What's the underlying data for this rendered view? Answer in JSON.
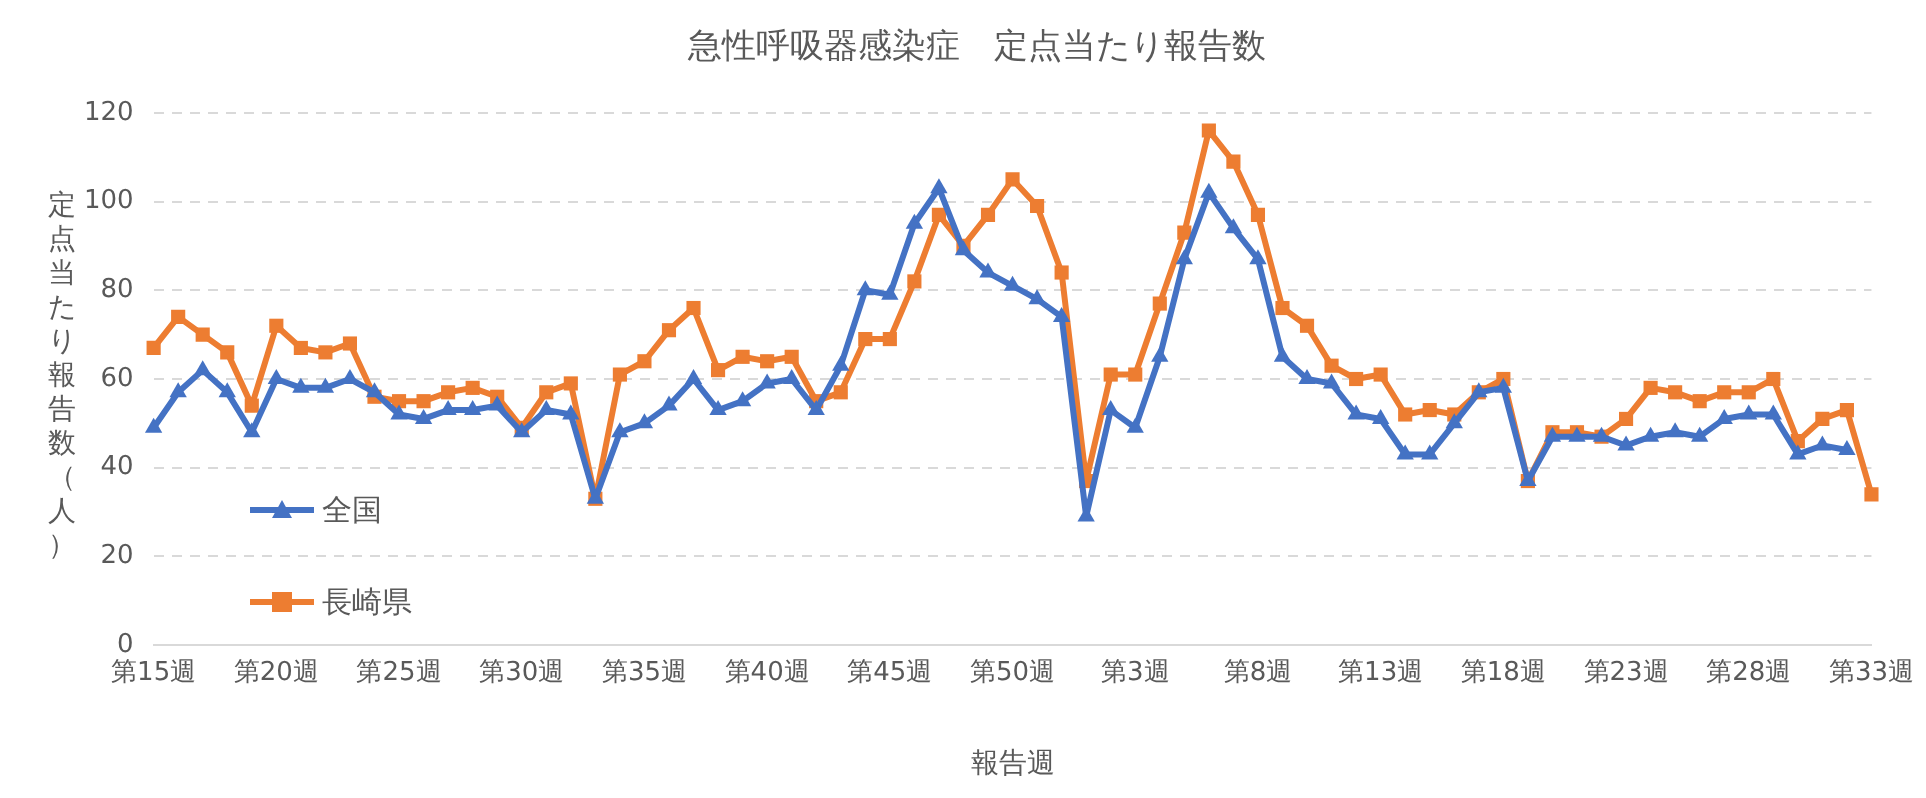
{
  "chart_data": {
    "type": "line",
    "title": "急性呼吸器感染症　定点当たり報告数",
    "xlabel": "報告週",
    "ylabel": "定点当たり報告数（人）",
    "categories": [
      "第15週",
      null,
      null,
      null,
      null,
      "第20週",
      null,
      null,
      null,
      null,
      "第25週",
      null,
      null,
      null,
      null,
      "第30週",
      null,
      null,
      null,
      null,
      "第35週",
      null,
      null,
      null,
      null,
      "第40週",
      null,
      null,
      null,
      null,
      "第45週",
      null,
      null,
      null,
      null,
      "第50週",
      null,
      null,
      null,
      null,
      "第3週",
      null,
      null,
      null,
      null,
      "第8週",
      null,
      null,
      null,
      null,
      "第13週",
      null,
      null,
      null,
      null,
      "第18週",
      null,
      null,
      null,
      null,
      "第23週",
      null,
      null,
      null,
      null,
      "第28週",
      null,
      null,
      null,
      null,
      "第33週"
    ],
    "series": [
      {
        "name": "全国",
        "color": "#4472c4",
        "marker": "triangle",
        "values": [
          49,
          57,
          62,
          57,
          48,
          60,
          58,
          58,
          60,
          57,
          52,
          51,
          53,
          53,
          54,
          48,
          53,
          52,
          33,
          48,
          50,
          54,
          60,
          53,
          55,
          59,
          60,
          53,
          63,
          80,
          79,
          95,
          103,
          89,
          84,
          81,
          78,
          74,
          29,
          53,
          49,
          65,
          87,
          102,
          94,
          87,
          65,
          60,
          59,
          52,
          51,
          43,
          43,
          50,
          57,
          58,
          37,
          47,
          47,
          47,
          45,
          47,
          48,
          47,
          51,
          52,
          52,
          43,
          45,
          44,
          null
        ]
      },
      {
        "name": "長崎県",
        "color": "#ed7d31",
        "marker": "square",
        "values": [
          67,
          74,
          70,
          66,
          54,
          72,
          67,
          66,
          68,
          56,
          55,
          55,
          57,
          58,
          56,
          49,
          57,
          59,
          33,
          61,
          64,
          71,
          76,
          62,
          65,
          64,
          65,
          55,
          57,
          69,
          69,
          82,
          97,
          90,
          97,
          105,
          99,
          84,
          37,
          61,
          61,
          77,
          93,
          116,
          109,
          97,
          76,
          72,
          63,
          60,
          61,
          52,
          53,
          52,
          57,
          60,
          37,
          48,
          48,
          47,
          51,
          58,
          57,
          55,
          57,
          57,
          60,
          46,
          51,
          53,
          34
        ]
      }
    ],
    "ylim": [
      0,
      120
    ],
    "yticks": [
      0,
      20,
      40,
      60,
      80,
      100,
      120
    ],
    "grid": "y",
    "legend": "bottom left",
    "line_style": "solid"
  }
}
